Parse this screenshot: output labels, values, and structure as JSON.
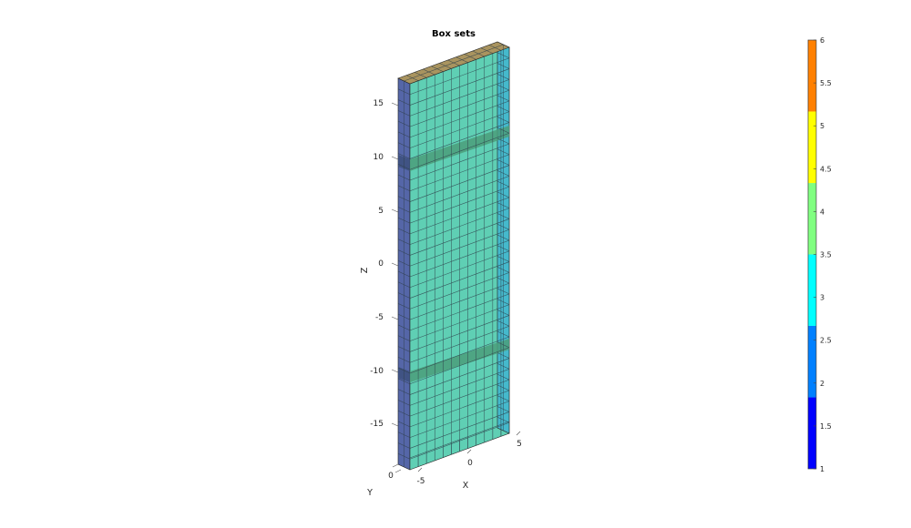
{
  "figure": {
    "title": "Box sets",
    "axes": {
      "x": {
        "label": "X",
        "ticks": [
          "-5",
          "0",
          "5"
        ]
      },
      "y": {
        "label": "Y",
        "ticks": [
          "0"
        ]
      },
      "z": {
        "label": "Z",
        "ticks": [
          "15",
          "10",
          "5",
          "0",
          "-5",
          "-10",
          "-15"
        ]
      }
    },
    "colorbar": {
      "ticks": [
        "6",
        "5.5",
        "5",
        "4.5",
        "4",
        "3.5",
        "3",
        "2.5",
        "2",
        "1.5",
        "1"
      ],
      "range": [
        1,
        6
      ],
      "bands": [
        {
          "from": 1.0,
          "to": 1.833,
          "color": "#0000ff"
        },
        {
          "from": 1.833,
          "to": 2.667,
          "color": "#0080ff"
        },
        {
          "from": 2.667,
          "to": 3.5,
          "color": "#00ffff"
        },
        {
          "from": 3.5,
          "to": 4.333,
          "color": "#80ff80"
        },
        {
          "from": 4.333,
          "to": 5.167,
          "color": "#ffff00"
        },
        {
          "from": 5.167,
          "to": 6.0,
          "color": "#ff8000"
        }
      ]
    },
    "colors": {
      "front_face": "#5fcfb4",
      "left_face": "#5566a8",
      "right_face": "#45b9cc",
      "top_face": "#a9945f",
      "band_shade": "#4b9e7a",
      "mesh_line": "#2e3f4a"
    }
  }
}
